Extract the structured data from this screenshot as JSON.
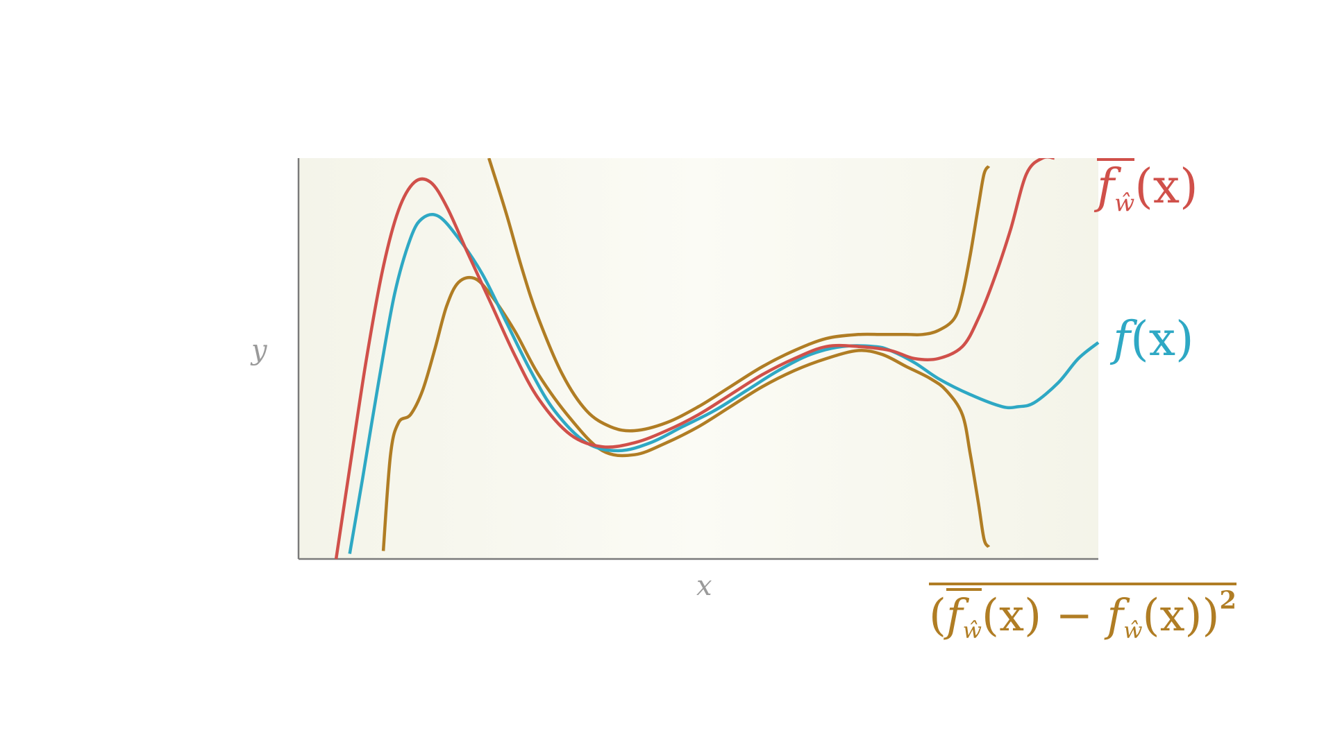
{
  "colors": {
    "mean": "#d0504a",
    "true": "#2ea8c4",
    "variance": "#b07d24",
    "axis": "#7a7a7a",
    "band": "#f7f7ee",
    "axislabel": "#9a9a9a"
  },
  "labels": {
    "mean_f": "f",
    "mean_sub": "ŵ",
    "mean_arg": "(x)",
    "true_f": "f",
    "true_arg": "(x)",
    "var_open": "(",
    "var_mean_f": "f",
    "var_mean_sub": "ŵ",
    "var_mean_arg": "(x)",
    "var_minus": " − ",
    "var_f": "f",
    "var_sub": "ŵ",
    "var_arg": "(x)",
    "var_close": ")",
    "var_sup": "2"
  },
  "chart_data": {
    "type": "line",
    "xlabel": "x",
    "ylabel": "y",
    "xlim": [
      0,
      1
    ],
    "ylim": [
      0,
      1
    ],
    "grid": false,
    "series": [
      {
        "role": "true",
        "color": "#2ea8c4",
        "x": [
          0.064,
          0.08,
          0.1,
          0.12,
          0.14,
          0.155,
          0.175,
          0.2,
          0.23,
          0.26,
          0.29,
          0.32,
          0.36,
          0.4,
          0.44,
          0.48,
          0.52,
          0.56,
          0.6,
          0.64,
          0.68,
          0.72,
          0.74,
          0.77,
          0.8,
          0.84,
          0.88,
          0.9,
          0.92,
          0.95,
          0.975,
          1.0
        ],
        "y": [
          0.013,
          0.2,
          0.44,
          0.66,
          0.8,
          0.85,
          0.855,
          0.8,
          0.71,
          0.59,
          0.47,
          0.37,
          0.29,
          0.27,
          0.29,
          0.33,
          0.37,
          0.42,
          0.47,
          0.51,
          0.53,
          0.53,
          0.52,
          0.49,
          0.45,
          0.41,
          0.38,
          0.38,
          0.39,
          0.44,
          0.5,
          0.54
        ]
      },
      {
        "role": "mean",
        "color": "#d0504a",
        "x": [
          0.047,
          0.065,
          0.085,
          0.105,
          0.125,
          0.145,
          0.165,
          0.185,
          0.21,
          0.24,
          0.27,
          0.3,
          0.34,
          0.38,
          0.42,
          0.46,
          0.5,
          0.54,
          0.58,
          0.62,
          0.66,
          0.7,
          0.74,
          0.77,
          0.8,
          0.83,
          0.85,
          0.87,
          0.89,
          0.91,
          0.93,
          0.945
        ],
        "y": [
          0.0,
          0.24,
          0.5,
          0.72,
          0.87,
          0.94,
          0.94,
          0.88,
          0.77,
          0.64,
          0.51,
          0.4,
          0.31,
          0.28,
          0.29,
          0.32,
          0.36,
          0.41,
          0.46,
          0.5,
          0.53,
          0.53,
          0.52,
          0.5,
          0.5,
          0.53,
          0.6,
          0.7,
          0.82,
          0.96,
          1.0,
          1.0
        ]
      },
      {
        "role": "upper",
        "color": "#b07d24",
        "x": [
          0.238,
          0.26,
          0.28,
          0.3,
          0.33,
          0.36,
          0.39,
          0.42,
          0.46,
          0.5,
          0.54,
          0.58,
          0.62,
          0.66,
          0.7,
          0.73,
          0.76,
          0.78,
          0.8,
          0.82,
          0.83,
          0.84,
          0.85,
          0.857,
          0.863
        ],
        "y": [
          1.0,
          0.86,
          0.72,
          0.6,
          0.46,
          0.37,
          0.33,
          0.32,
          0.34,
          0.38,
          0.43,
          0.48,
          0.52,
          0.55,
          0.56,
          0.56,
          0.56,
          0.56,
          0.57,
          0.6,
          0.66,
          0.76,
          0.88,
          0.96,
          0.98
        ]
      },
      {
        "role": "lower",
        "color": "#b07d24",
        "x": [
          0.106,
          0.115,
          0.125,
          0.14,
          0.155,
          0.17,
          0.185,
          0.2,
          0.22,
          0.24,
          0.27,
          0.3,
          0.34,
          0.38,
          0.42,
          0.46,
          0.5,
          0.54,
          0.58,
          0.62,
          0.66,
          0.7,
          0.73,
          0.76,
          0.79,
          0.81,
          0.83,
          0.84,
          0.85,
          0.857,
          0.863
        ],
        "y": [
          0.02,
          0.26,
          0.34,
          0.36,
          0.42,
          0.52,
          0.63,
          0.69,
          0.7,
          0.66,
          0.57,
          0.46,
          0.35,
          0.27,
          0.26,
          0.29,
          0.33,
          0.38,
          0.43,
          0.47,
          0.5,
          0.52,
          0.51,
          0.48,
          0.45,
          0.42,
          0.36,
          0.26,
          0.14,
          0.05,
          0.03
        ]
      }
    ]
  }
}
